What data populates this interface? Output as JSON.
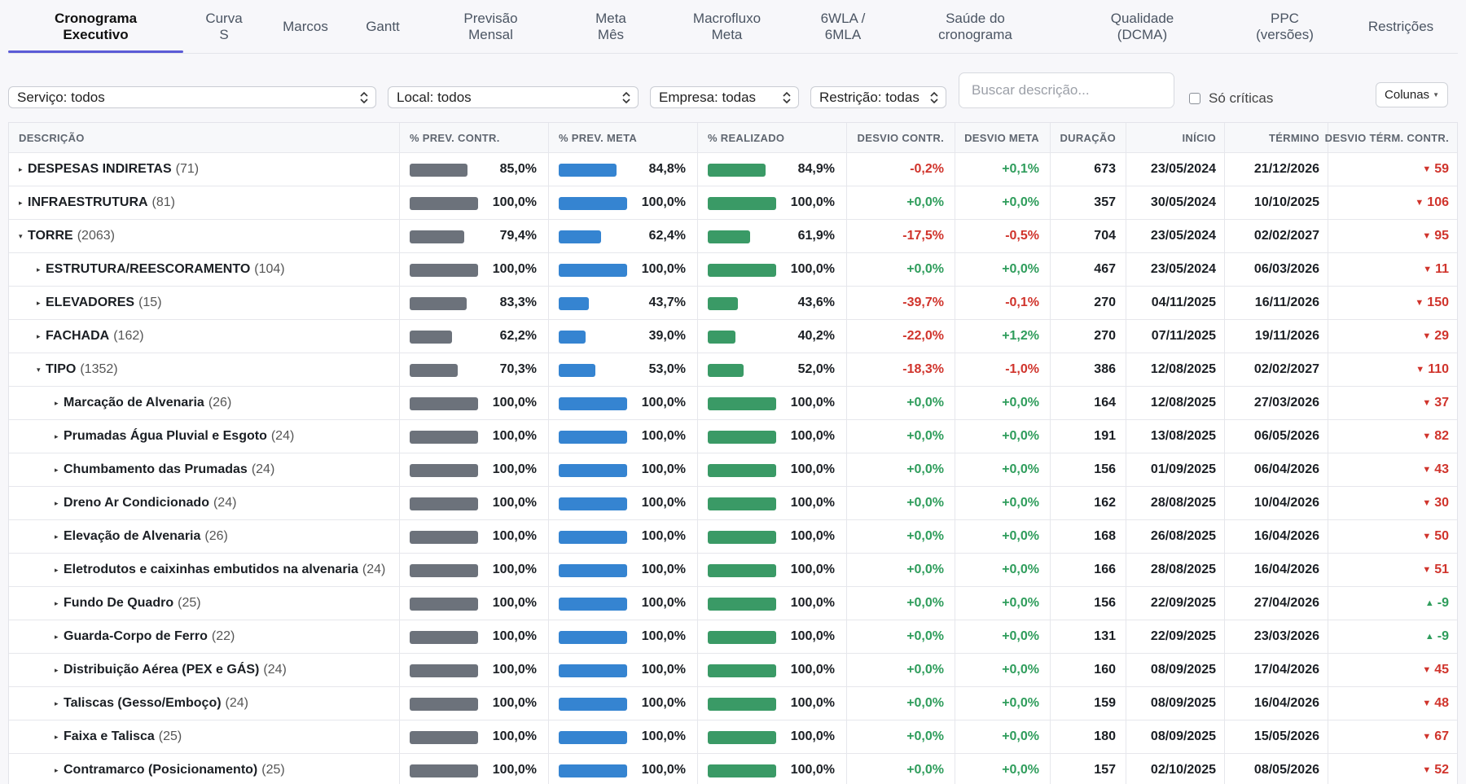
{
  "tabs": [
    {
      "label": "Cronograma\nExecutivo",
      "active": true
    },
    {
      "label": "Curva\nS"
    },
    {
      "label": "Marcos"
    },
    {
      "label": "Gantt"
    },
    {
      "label": "Previsão\nMensal"
    },
    {
      "label": "Meta\nMês"
    },
    {
      "label": "Macrofluxo\nMeta"
    },
    {
      "label": "6WLA /\n6MLA"
    },
    {
      "label": "Saúde do\ncronograma"
    },
    {
      "label": "Qualidade\n(DCMA)"
    },
    {
      "label": "PPC\n(versões)"
    },
    {
      "label": "Restrições"
    }
  ],
  "filters": {
    "servico": "Serviço: todos",
    "local": "Local: todos",
    "empresa": "Empresa: todas",
    "restricao": "Restrição: todas",
    "search_placeholder": "Buscar descrição...",
    "only_critical": "Só críticas",
    "columns_button": "Colunas"
  },
  "columns": {
    "desc": "DESCRIÇÃO",
    "prev_contr": "% PREV. CONTR.",
    "prev_meta": "% PREV. META",
    "realizado": "% REALIZADO",
    "desvio_contr": "DESVIO CONTR.",
    "desvio_meta": "DESVIO META",
    "duracao": "DURAÇÃO",
    "inicio": "INÍCIO",
    "termino": "TÉRMINO",
    "desvio_term": "DESVIO TÉRM. CONTR."
  },
  "colors": {
    "accent": "#5b5bd6",
    "bar_contr": "#6c727b",
    "bar_meta": "#3584d1",
    "bar_real": "#3a9a66",
    "negative": "#d0342c",
    "positive": "#2f9d5c"
  },
  "rows": [
    {
      "level": 0,
      "expanded": false,
      "name": "DESPESAS INDIRETAS",
      "count": "(71)",
      "pc": 85.0,
      "pc_label": "85,0%",
      "pm": 84.8,
      "pm_label": "84,8%",
      "pr": 84.9,
      "pr_label": "84,9%",
      "dc": "-0,2%",
      "dc_sign": "neg",
      "dm": "+0,1%",
      "dm_sign": "pos",
      "dur": "673",
      "ini": "23/05/2024",
      "ter": "21/12/2026",
      "dt": "59",
      "dt_dir": "down"
    },
    {
      "level": 0,
      "expanded": false,
      "name": "INFRAESTRUTURA",
      "count": "(81)",
      "pc": 100,
      "pc_label": "100,0%",
      "pm": 100,
      "pm_label": "100,0%",
      "pr": 100,
      "pr_label": "100,0%",
      "dc": "+0,0%",
      "dc_sign": "pos",
      "dm": "+0,0%",
      "dm_sign": "pos",
      "dur": "357",
      "ini": "30/05/2024",
      "ter": "10/10/2025",
      "dt": "106",
      "dt_dir": "down"
    },
    {
      "level": 0,
      "expanded": true,
      "name": "TORRE",
      "count": "(2063)",
      "pc": 79.4,
      "pc_label": "79,4%",
      "pm": 62.4,
      "pm_label": "62,4%",
      "pr": 61.9,
      "pr_label": "61,9%",
      "dc": "-17,5%",
      "dc_sign": "neg",
      "dm": "-0,5%",
      "dm_sign": "neg",
      "dur": "704",
      "ini": "23/05/2024",
      "ter": "02/02/2027",
      "dt": "95",
      "dt_dir": "down"
    },
    {
      "level": 1,
      "expanded": false,
      "name": "ESTRUTURA/REESCORAMENTO",
      "count": "(104)",
      "pc": 100,
      "pc_label": "100,0%",
      "pm": 100,
      "pm_label": "100,0%",
      "pr": 100,
      "pr_label": "100,0%",
      "dc": "+0,0%",
      "dc_sign": "pos",
      "dm": "+0,0%",
      "dm_sign": "pos",
      "dur": "467",
      "ini": "23/05/2024",
      "ter": "06/03/2026",
      "dt": "11",
      "dt_dir": "down"
    },
    {
      "level": 1,
      "expanded": false,
      "name": "ELEVADORES",
      "count": "(15)",
      "pc": 83.3,
      "pc_label": "83,3%",
      "pm": 43.7,
      "pm_label": "43,7%",
      "pr": 43.6,
      "pr_label": "43,6%",
      "dc": "-39,7%",
      "dc_sign": "neg",
      "dm": "-0,1%",
      "dm_sign": "neg",
      "dur": "270",
      "ini": "04/11/2025",
      "ter": "16/11/2026",
      "dt": "150",
      "dt_dir": "down"
    },
    {
      "level": 1,
      "expanded": false,
      "name": "FACHADA",
      "count": "(162)",
      "pc": 62.2,
      "pc_label": "62,2%",
      "pm": 39.0,
      "pm_label": "39,0%",
      "pr": 40.2,
      "pr_label": "40,2%",
      "dc": "-22,0%",
      "dc_sign": "neg",
      "dm": "+1,2%",
      "dm_sign": "pos",
      "dur": "270",
      "ini": "07/11/2025",
      "ter": "19/11/2026",
      "dt": "29",
      "dt_dir": "down"
    },
    {
      "level": 1,
      "expanded": true,
      "name": "TIPO",
      "count": "(1352)",
      "pc": 70.3,
      "pc_label": "70,3%",
      "pm": 53.0,
      "pm_label": "53,0%",
      "pr": 52.0,
      "pr_label": "52,0%",
      "dc": "-18,3%",
      "dc_sign": "neg",
      "dm": "-1,0%",
      "dm_sign": "neg",
      "dur": "386",
      "ini": "12/08/2025",
      "ter": "02/02/2027",
      "dt": "110",
      "dt_dir": "down"
    },
    {
      "level": 2,
      "expanded": false,
      "name": "Marcação de Alvenaria",
      "count": "(26)",
      "pc": 100,
      "pc_label": "100,0%",
      "pm": 100,
      "pm_label": "100,0%",
      "pr": 100,
      "pr_label": "100,0%",
      "dc": "+0,0%",
      "dc_sign": "pos",
      "dm": "+0,0%",
      "dm_sign": "pos",
      "dur": "164",
      "ini": "12/08/2025",
      "ter": "27/03/2026",
      "dt": "37",
      "dt_dir": "down"
    },
    {
      "level": 2,
      "expanded": false,
      "name": "Prumadas Água Pluvial e Esgoto",
      "count": "(24)",
      "pc": 100,
      "pc_label": "100,0%",
      "pm": 100,
      "pm_label": "100,0%",
      "pr": 100,
      "pr_label": "100,0%",
      "dc": "+0,0%",
      "dc_sign": "pos",
      "dm": "+0,0%",
      "dm_sign": "pos",
      "dur": "191",
      "ini": "13/08/2025",
      "ter": "06/05/2026",
      "dt": "82",
      "dt_dir": "down"
    },
    {
      "level": 2,
      "expanded": false,
      "name": "Chumbamento das Prumadas",
      "count": "(24)",
      "pc": 100,
      "pc_label": "100,0%",
      "pm": 100,
      "pm_label": "100,0%",
      "pr": 100,
      "pr_label": "100,0%",
      "dc": "+0,0%",
      "dc_sign": "pos",
      "dm": "+0,0%",
      "dm_sign": "pos",
      "dur": "156",
      "ini": "01/09/2025",
      "ter": "06/04/2026",
      "dt": "43",
      "dt_dir": "down"
    },
    {
      "level": 2,
      "expanded": false,
      "name": "Dreno Ar Condicionado",
      "count": "(24)",
      "pc": 100,
      "pc_label": "100,0%",
      "pm": 100,
      "pm_label": "100,0%",
      "pr": 100,
      "pr_label": "100,0%",
      "dc": "+0,0%",
      "dc_sign": "pos",
      "dm": "+0,0%",
      "dm_sign": "pos",
      "dur": "162",
      "ini": "28/08/2025",
      "ter": "10/04/2026",
      "dt": "30",
      "dt_dir": "down"
    },
    {
      "level": 2,
      "expanded": false,
      "name": "Elevação de Alvenaria",
      "count": "(26)",
      "pc": 100,
      "pc_label": "100,0%",
      "pm": 100,
      "pm_label": "100,0%",
      "pr": 100,
      "pr_label": "100,0%",
      "dc": "+0,0%",
      "dc_sign": "pos",
      "dm": "+0,0%",
      "dm_sign": "pos",
      "dur": "168",
      "ini": "26/08/2025",
      "ter": "16/04/2026",
      "dt": "50",
      "dt_dir": "down"
    },
    {
      "level": 2,
      "expanded": false,
      "name": "Eletrodutos e caixinhas embutidos na alvenaria",
      "count": "(24)",
      "pc": 100,
      "pc_label": "100,0%",
      "pm": 100,
      "pm_label": "100,0%",
      "pr": 100,
      "pr_label": "100,0%",
      "dc": "+0,0%",
      "dc_sign": "pos",
      "dm": "+0,0%",
      "dm_sign": "pos",
      "dur": "166",
      "ini": "28/08/2025",
      "ter": "16/04/2026",
      "dt": "51",
      "dt_dir": "down"
    },
    {
      "level": 2,
      "expanded": false,
      "name": "Fundo De Quadro",
      "count": "(25)",
      "pc": 100,
      "pc_label": "100,0%",
      "pm": 100,
      "pm_label": "100,0%",
      "pr": 100,
      "pr_label": "100,0%",
      "dc": "+0,0%",
      "dc_sign": "pos",
      "dm": "+0,0%",
      "dm_sign": "pos",
      "dur": "156",
      "ini": "22/09/2025",
      "ter": "27/04/2026",
      "dt": "-9",
      "dt_dir": "up"
    },
    {
      "level": 2,
      "expanded": false,
      "name": "Guarda-Corpo de Ferro",
      "count": "(22)",
      "pc": 100,
      "pc_label": "100,0%",
      "pm": 100,
      "pm_label": "100,0%",
      "pr": 100,
      "pr_label": "100,0%",
      "dc": "+0,0%",
      "dc_sign": "pos",
      "dm": "+0,0%",
      "dm_sign": "pos",
      "dur": "131",
      "ini": "22/09/2025",
      "ter": "23/03/2026",
      "dt": "-9",
      "dt_dir": "up"
    },
    {
      "level": 2,
      "expanded": false,
      "name": "Distribuição Aérea (PEX e GÁS)",
      "count": "(24)",
      "pc": 100,
      "pc_label": "100,0%",
      "pm": 100,
      "pm_label": "100,0%",
      "pr": 100,
      "pr_label": "100,0%",
      "dc": "+0,0%",
      "dc_sign": "pos",
      "dm": "+0,0%",
      "dm_sign": "pos",
      "dur": "160",
      "ini": "08/09/2025",
      "ter": "17/04/2026",
      "dt": "45",
      "dt_dir": "down"
    },
    {
      "level": 2,
      "expanded": false,
      "name": "Taliscas (Gesso/Emboço)",
      "count": "(24)",
      "pc": 100,
      "pc_label": "100,0%",
      "pm": 100,
      "pm_label": "100,0%",
      "pr": 100,
      "pr_label": "100,0%",
      "dc": "+0,0%",
      "dc_sign": "pos",
      "dm": "+0,0%",
      "dm_sign": "pos",
      "dur": "159",
      "ini": "08/09/2025",
      "ter": "16/04/2026",
      "dt": "48",
      "dt_dir": "down"
    },
    {
      "level": 2,
      "expanded": false,
      "name": "Faixa e Talisca",
      "count": "(25)",
      "pc": 100,
      "pc_label": "100,0%",
      "pm": 100,
      "pm_label": "100,0%",
      "pr": 100,
      "pr_label": "100,0%",
      "dc": "+0,0%",
      "dc_sign": "pos",
      "dm": "+0,0%",
      "dm_sign": "pos",
      "dur": "180",
      "ini": "08/09/2025",
      "ter": "15/05/2026",
      "dt": "67",
      "dt_dir": "down"
    },
    {
      "level": 2,
      "expanded": false,
      "name": "Contramarco (Posicionamento)",
      "count": "(25)",
      "pc": 100,
      "pc_label": "100,0%",
      "pm": 100,
      "pm_label": "100,0%",
      "pr": 100,
      "pr_label": "100,0%",
      "dc": "+0,0%",
      "dc_sign": "pos",
      "dm": "+0,0%",
      "dm_sign": "pos",
      "dur": "157",
      "ini": "02/10/2025",
      "ter": "08/05/2026",
      "dt": "52",
      "dt_dir": "down"
    }
  ]
}
